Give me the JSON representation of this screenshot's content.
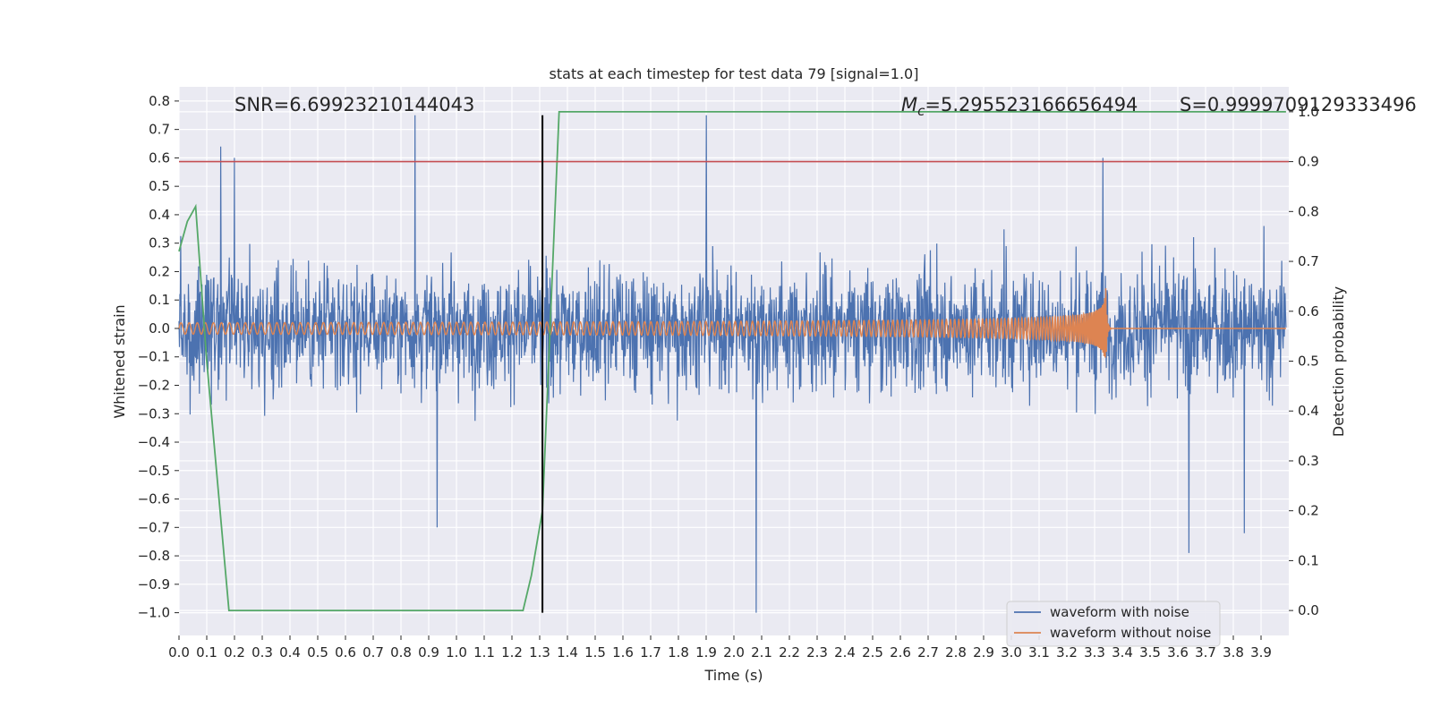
{
  "chart_data": {
    "type": "line",
    "title": "stats at each timestep for test data 79 [signal=1.0]",
    "xlabel": "Time (s)",
    "ylabel": "Whitened strain",
    "ylabel_right": "Detection probability",
    "xlim": [
      0.0,
      4.0
    ],
    "ylim": [
      -1.08,
      0.85
    ],
    "ylim_right": [
      -0.05,
      1.05
    ],
    "x_ticks": [
      "0.0",
      "0.1",
      "0.2",
      "0.3",
      "0.4",
      "0.5",
      "0.6",
      "0.7",
      "0.8",
      "0.9",
      "1.0",
      "1.1",
      "1.2",
      "1.3",
      "1.4",
      "1.5",
      "1.6",
      "1.7",
      "1.8",
      "1.9",
      "2.0",
      "2.1",
      "2.2",
      "2.3",
      "2.4",
      "2.5",
      "2.6",
      "2.7",
      "2.8",
      "2.9",
      "3.0",
      "3.1",
      "3.2",
      "3.3",
      "3.4",
      "3.5",
      "3.6",
      "3.7",
      "3.8",
      "3.9"
    ],
    "y_ticks": [
      "0.8",
      "0.7",
      "0.6",
      "0.5",
      "0.4",
      "0.3",
      "0.2",
      "0.1",
      "0.0",
      "−0.1",
      "−0.2",
      "−0.3",
      "−0.4",
      "−0.5",
      "−0.6",
      "−0.7",
      "−0.8",
      "−0.9",
      "−1.0"
    ],
    "y_ticks_right": [
      "1.0",
      "0.9",
      "0.8",
      "0.7",
      "0.6",
      "0.5",
      "0.4",
      "0.3",
      "0.2",
      "0.1",
      "0.0"
    ],
    "annotations": {
      "snr": "SNR=6.69923210144043",
      "mc_symbol": "M",
      "mc_sub": "c",
      "mc_value": "=5.295523166656494",
      "s": "S=0.9999709129333496"
    },
    "threshold_right": 0.9,
    "vertical_marker_x": 1.31,
    "vertical_marker_range": [
      -1.0,
      0.75
    ],
    "series": [
      {
        "name": "waveform with noise",
        "color": "#4c72b0",
        "axis": "left",
        "noise_std": 0.18,
        "extremes": [
          [
            0.85,
            0.75
          ],
          [
            1.9,
            0.75
          ],
          [
            2.08,
            -1.0
          ],
          [
            0.93,
            -0.7
          ],
          [
            3.64,
            -0.79
          ],
          [
            3.84,
            -0.72
          ],
          [
            3.33,
            0.6
          ],
          [
            0.15,
            0.64
          ],
          [
            0.2,
            0.6
          ]
        ]
      },
      {
        "name": "waveform without noise",
        "color": "#dd8452",
        "axis": "left",
        "chirp": {
          "t_merge": 3.34,
          "amp_start": 0.02,
          "amp_peak": 0.16,
          "freq_start": 34,
          "freq_end": 240,
          "ringdown_end": 3.36
        }
      },
      {
        "name": "",
        "color": "#55a868",
        "axis": "right",
        "x": [
          0.0,
          0.03,
          0.06,
          0.1,
          0.18,
          0.25,
          1.24,
          1.27,
          1.31,
          1.37,
          3.99
        ],
        "y": [
          0.72,
          0.78,
          0.81,
          0.5,
          0.0,
          0.0,
          0.0,
          0.07,
          0.2,
          1.0,
          1.0
        ]
      }
    ],
    "legend": {
      "position": "lower-right",
      "entries": [
        "waveform with noise",
        "waveform without noise"
      ]
    },
    "grid": true,
    "colors": {
      "background": "#eaeaf2",
      "grid": "#ffffff",
      "threshold": "#c44e52",
      "marker": "#000000"
    }
  }
}
